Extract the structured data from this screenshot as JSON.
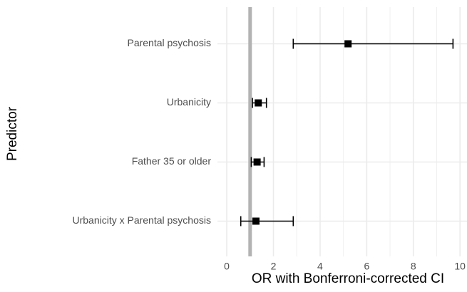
{
  "chart_data": {
    "type": "forest",
    "x_label": "OR with Bonferroni-corrected CI",
    "y_label": "Predictor",
    "categories": [
      "Parental psychosis",
      "Urbanicity",
      "Father 35 or older",
      "Urbanicity x Parental psychosis"
    ],
    "values": [
      5.2,
      1.35,
      1.3,
      1.25
    ],
    "ci_lower": [
      2.85,
      1.1,
      1.05,
      0.6
    ],
    "ci_upper": [
      9.7,
      1.7,
      1.6,
      2.85
    ],
    "color": "#000000",
    "reference_line": 1,
    "reference_color": "#b3b3b3",
    "xlim": [
      -0.4,
      10.3
    ],
    "xticks": [
      0,
      2,
      4,
      6,
      8,
      10
    ],
    "xminor": [
      1,
      3,
      5,
      7,
      9
    ],
    "grid": true
  }
}
